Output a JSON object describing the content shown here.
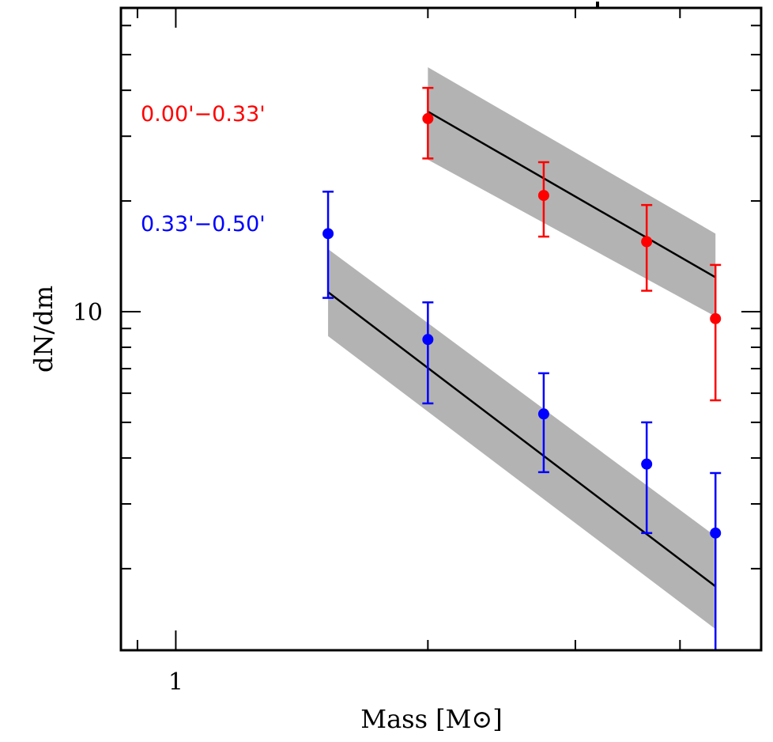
{
  "chart_data": {
    "type": "scatter",
    "title": "",
    "xlabel": "Mass [M⊙]",
    "ylabel": "dN/dm",
    "xscale": "log",
    "yscale": "log",
    "xlim": [
      0.86,
      5.0
    ],
    "ylim": [
      1.2,
      67
    ],
    "grid": false,
    "x_major_ticks": [
      {
        "value": 1,
        "label": "1"
      }
    ],
    "x_minor_ticks": [
      0.9,
      2,
      3,
      4
    ],
    "y_major_ticks": [
      {
        "value": 10,
        "label": "10"
      }
    ],
    "y_minor_ticks": [
      2,
      3,
      4,
      5,
      6,
      7,
      8,
      9,
      20,
      30,
      40,
      50,
      60
    ],
    "series": [
      {
        "name": "0.00'−0.33'",
        "color": "#ff0000",
        "label_position": "upper-left",
        "points": [
          {
            "x": 2.0,
            "y": 33.5,
            "ylow": 26.1,
            "yhigh": 40.6
          },
          {
            "x": 2.75,
            "y": 20.7,
            "ylow": 16.0,
            "yhigh": 25.5
          },
          {
            "x": 3.65,
            "y": 15.5,
            "ylow": 11.4,
            "yhigh": 19.5
          },
          {
            "x": 4.41,
            "y": 9.57,
            "ylow": 5.74,
            "yhigh": 13.4
          }
        ],
        "fit": {
          "x": [
            2.0,
            4.41
          ],
          "y": [
            35.0,
            12.4
          ],
          "band_upper": [
            46.2,
            16.3
          ],
          "band_lower": [
            25.9,
            9.7
          ]
        }
      },
      {
        "name": "0.33'−0.50'",
        "color": "#0000ff",
        "label_position": "left",
        "points": [
          {
            "x": 1.52,
            "y": 16.3,
            "ylow": 10.9,
            "yhigh": 21.2
          },
          {
            "x": 2.0,
            "y": 8.4,
            "ylow": 5.63,
            "yhigh": 10.6
          },
          {
            "x": 2.75,
            "y": 5.27,
            "ylow": 3.66,
            "yhigh": 6.8
          },
          {
            "x": 3.65,
            "y": 3.85,
            "ylow": 2.5,
            "yhigh": 5.0
          },
          {
            "x": 4.41,
            "y": 2.5,
            "ylow": 1.2,
            "yhigh": 3.64
          }
        ],
        "fit": {
          "x": [
            1.52,
            4.41
          ],
          "y": [
            11.3,
            1.79
          ],
          "band_upper": [
            14.8,
            2.45
          ],
          "band_lower": [
            8.58,
            1.37
          ]
        }
      }
    ],
    "band_color": "#b3b3b3",
    "fit_line_color": "#000000"
  }
}
